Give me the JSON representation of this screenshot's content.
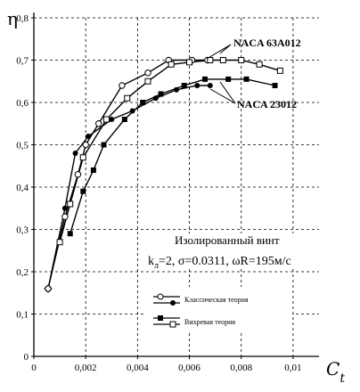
{
  "chart_data": {
    "type": "line",
    "title": "",
    "xlabel": "C",
    "xlabel_sub": "t",
    "ylabel": "η",
    "xlim": [
      0,
      0.011
    ],
    "ylim": [
      0,
      0.8
    ],
    "x_ticks": [
      0,
      0.002,
      0.004,
      0.006,
      0.008,
      0.01
    ],
    "x_tick_labels": [
      "0",
      "0,002",
      "0,004",
      "0,006",
      "0,008",
      "0,01"
    ],
    "y_ticks": [
      0,
      0.1,
      0.2,
      0.3,
      0.4,
      0.5,
      0.6,
      0.7,
      0.8
    ],
    "y_tick_labels": [
      "0",
      "0,1",
      "0,2",
      "0,3",
      "0,4",
      "0,5",
      "0,6",
      "0,7",
      "0,8"
    ],
    "grid": true,
    "grid_style": "dashed",
    "series": [
      {
        "name": "Классическая теория",
        "airfoil": "NACA 63A012",
        "marker": "open-circle",
        "x": [
          0.00055,
          0.0012,
          0.0017,
          0.002,
          0.0025,
          0.0034,
          0.0044,
          0.0052,
          0.0061,
          0.0067
        ],
        "y": [
          0.16,
          0.33,
          0.43,
          0.5,
          0.55,
          0.64,
          0.67,
          0.7,
          0.7,
          0.7
        ]
      },
      {
        "name": "Классическая теория",
        "airfoil": "NACA 23012",
        "marker": "filled-circle",
        "x": [
          0.00055,
          0.0012,
          0.0016,
          0.0021,
          0.003,
          0.0038,
          0.0047,
          0.0055,
          0.0063,
          0.0068
        ],
        "y": [
          0.16,
          0.35,
          0.48,
          0.52,
          0.56,
          0.58,
          0.61,
          0.63,
          0.64,
          0.64
        ]
      },
      {
        "name": "Вихревая теория",
        "airfoil": "NACA 63A012",
        "marker": "open-square",
        "x": [
          0.001,
          0.0014,
          0.0019,
          0.0028,
          0.0036,
          0.0044,
          0.0053,
          0.006,
          0.0068,
          0.0073,
          0.008,
          0.0087,
          0.0095
        ],
        "y": [
          0.27,
          0.36,
          0.47,
          0.56,
          0.61,
          0.65,
          0.69,
          0.695,
          0.7,
          0.7,
          0.7,
          0.69,
          0.675
        ]
      },
      {
        "name": "Вихревая теория",
        "airfoil": "NACA 23012",
        "marker": "filled-square",
        "x": [
          0.0014,
          0.0019,
          0.0023,
          0.0027,
          0.0035,
          0.0042,
          0.0049,
          0.0058,
          0.0066,
          0.0075,
          0.0082,
          0.0093
        ],
        "y": [
          0.29,
          0.39,
          0.44,
          0.5,
          0.56,
          0.6,
          0.62,
          0.64,
          0.655,
          0.655,
          0.655,
          0.64
        ]
      }
    ],
    "annotations": {
      "curve_label_1": "NACA 63A012",
      "curve_label_2": "NACA 23012",
      "line1": "Изолированный винт",
      "line2_k": "k",
      "line2_k_sub": "л",
      "line2_rest": "=2,  σ=0.0311, ωR=195м/с"
    },
    "legend_position": "bottom-right",
    "legend": [
      {
        "label": "Классическая теория",
        "markers": [
          "open-circle",
          "filled-circle"
        ]
      },
      {
        "label": "Вихревая теория",
        "markers": [
          "filled-square",
          "open-square"
        ]
      }
    ]
  }
}
